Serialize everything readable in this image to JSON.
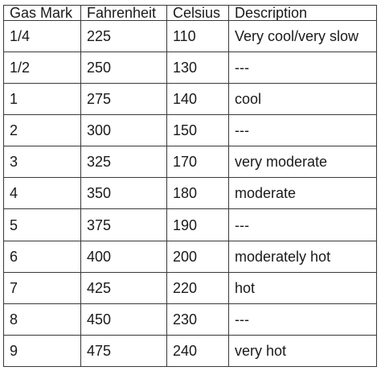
{
  "table": {
    "headers": [
      "Gas Mark",
      "Fahrenheit",
      "Celsius",
      "Description"
    ],
    "rows": [
      [
        "1/4",
        "225",
        "110",
        "Very cool/very slow"
      ],
      [
        "1/2",
        "250",
        "130",
        "---"
      ],
      [
        "1",
        "275",
        "140",
        "cool"
      ],
      [
        "2",
        "300",
        "150",
        "---"
      ],
      [
        "3",
        "325",
        "170",
        "very moderate"
      ],
      [
        "4",
        "350",
        "180",
        "moderate"
      ],
      [
        "5",
        "375",
        "190",
        "---"
      ],
      [
        "6",
        "400",
        "200",
        "moderately hot"
      ],
      [
        "7",
        "425",
        "220",
        "hot"
      ],
      [
        "8",
        "450",
        "230",
        "---"
      ],
      [
        "9",
        "475",
        "240",
        "very hot"
      ]
    ]
  }
}
